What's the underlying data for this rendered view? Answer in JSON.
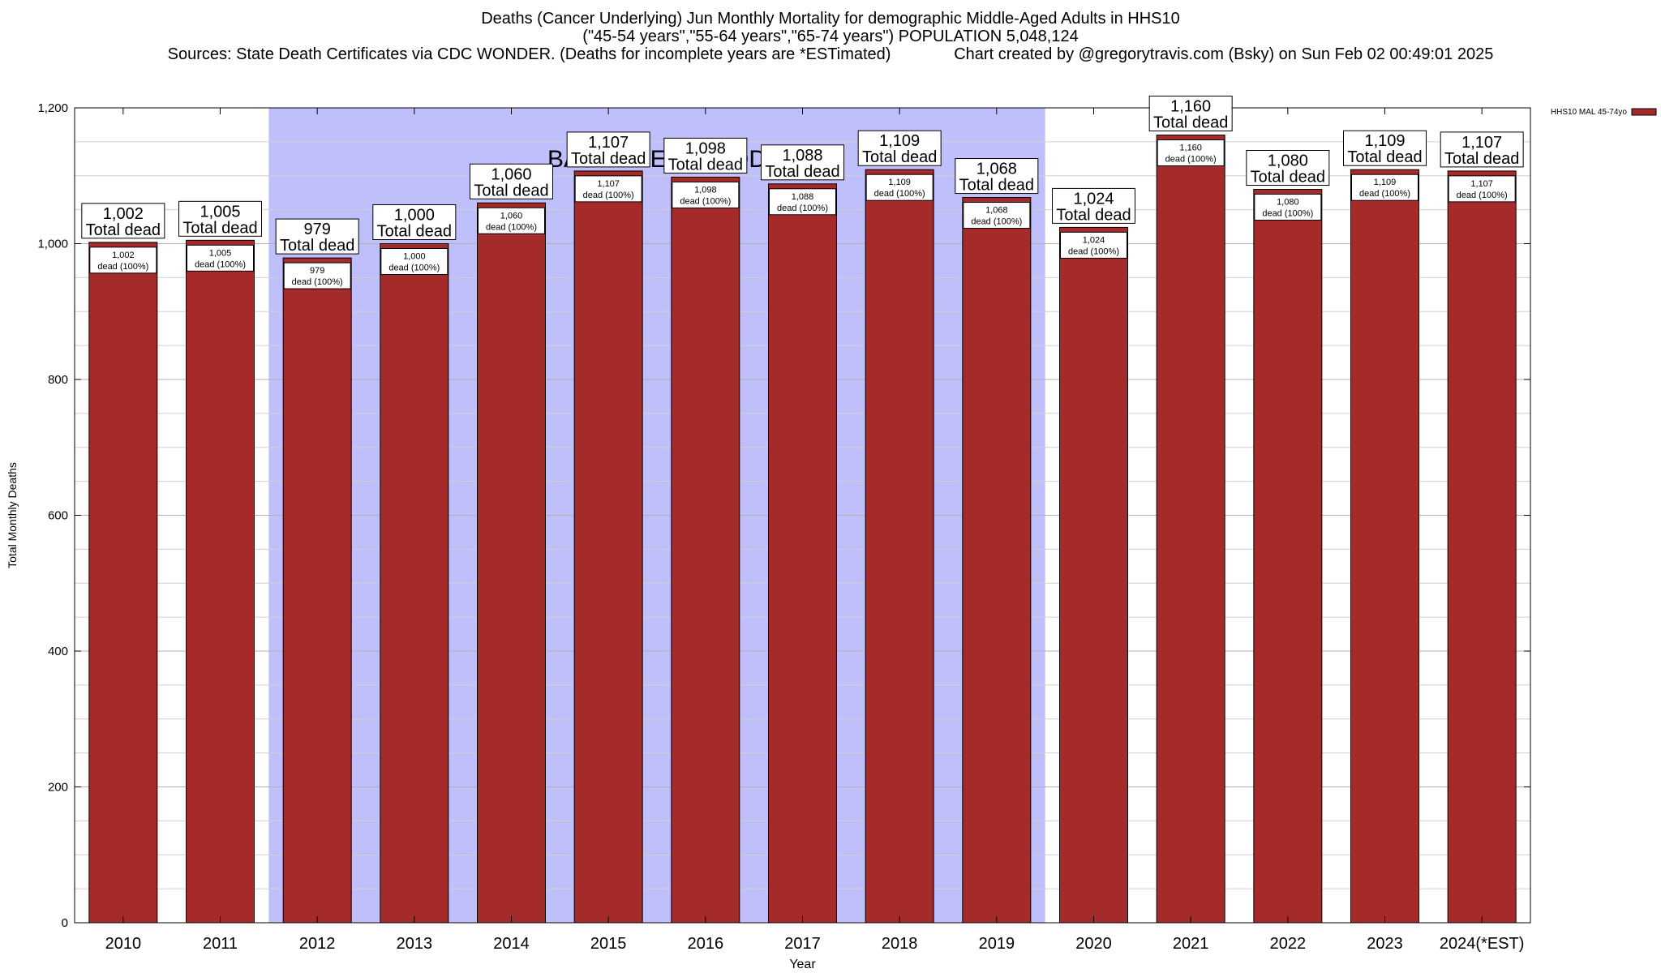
{
  "chart_data": {
    "type": "bar",
    "title_lines": [
      "Deaths (Cancer Underlying) Jun Monthly Mortality for demographic Middle-Aged Adults in HHS10",
      "(\"45-54 years\",\"55-64 years\",\"65-74 years\") POPULATION 5,048,124",
      "Sources: State Death Certificates via CDC WONDER. (Deaths for incomplete years are *ESTimated)              Chart created by @gregorytravis.com (Bsky) on Sun Feb 02 00:49:01 2025"
    ],
    "xlabel": "Year",
    "ylabel": "Total Monthly Deaths",
    "ylim": [
      0,
      1200
    ],
    "yticks": [
      0,
      200,
      400,
      600,
      800,
      1000,
      1200
    ],
    "ytick_labels": [
      "0",
      "200",
      "400",
      "600",
      "800",
      "1,000",
      "1,200"
    ],
    "categories": [
      "2010",
      "2011",
      "2012",
      "2013",
      "2014",
      "2015",
      "2016",
      "2017",
      "2018",
      "2019",
      "2020",
      "2021",
      "2022",
      "2023",
      "2024(*EST)"
    ],
    "series": [
      {
        "name": "HHS10 MAL 45-74yo",
        "color": "#a52a2a",
        "values": [
          1002,
          1005,
          979,
          1000,
          1060,
          1107,
          1098,
          1088,
          1109,
          1068,
          1024,
          1160,
          1080,
          1109,
          1107
        ]
      }
    ],
    "value_labels": [
      "1,002",
      "1,005",
      "979",
      "1,000",
      "1,060",
      "1,107",
      "1,098",
      "1,088",
      "1,109",
      "1,068",
      "1,024",
      "1,160",
      "1,080",
      "1,109",
      "1,107"
    ],
    "top_label_suffix": "Total dead",
    "inner_label_suffix": "dead (100%)",
    "baseline_period": {
      "label": "BASELINE PERIOD",
      "from": "2012",
      "to": "2019",
      "color": "#bfbffc"
    },
    "grid": true,
    "legend_position": "top-right"
  }
}
